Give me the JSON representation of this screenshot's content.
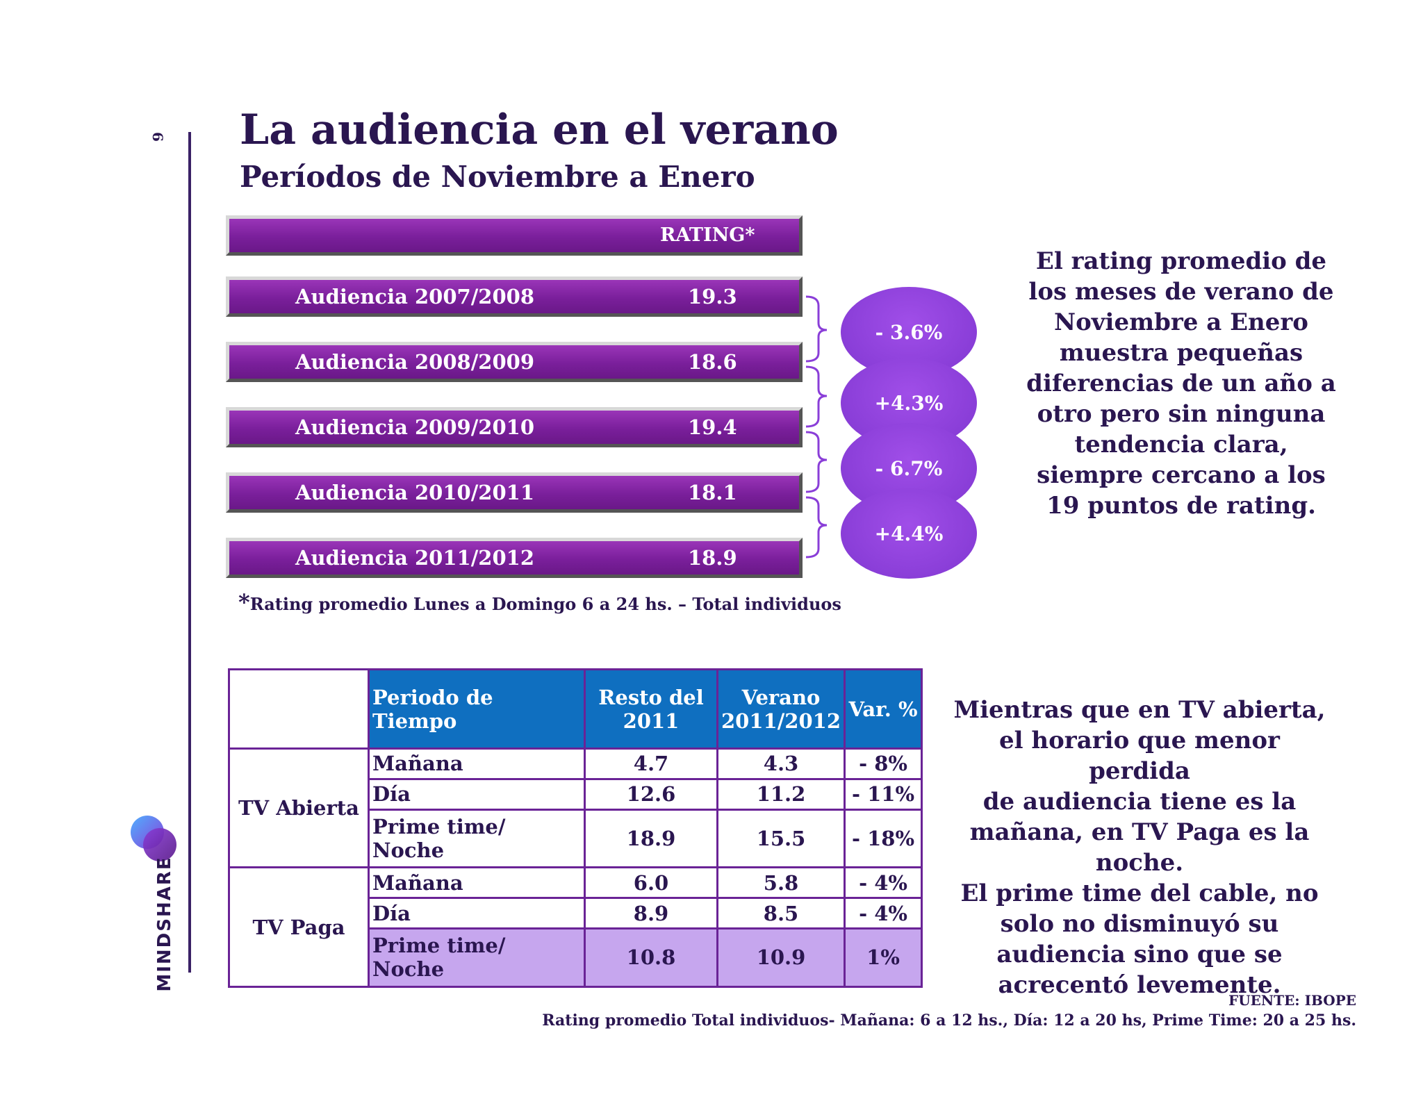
{
  "page_number": "6",
  "logo": {
    "text": "MINDSHARE",
    "icon": "mindshare-logo-icon"
  },
  "title": "La audiencia en el verano",
  "subtitle": "Períodos de Noviembre a Enero",
  "bars": {
    "header": "RATING*",
    "rows": [
      {
        "label": "Audiencia 2007/2008",
        "value": "19.3"
      },
      {
        "label": "Audiencia 2008/2009",
        "value": "18.6"
      },
      {
        "label": "Audiencia 2009/2010",
        "value": "19.4"
      },
      {
        "label": "Audiencia 2010/2011",
        "value": "18.1"
      },
      {
        "label": "Audiencia 2011/2012",
        "value": "18.9"
      }
    ],
    "changes": [
      "- 3.6%",
      "+4.3%",
      "- 6.7%",
      "+4.4%"
    ]
  },
  "footnote": {
    "star": "*",
    "text": "Rating promedio Lunes a Domingo 6 a 24 hs. – Total individuos"
  },
  "side_text_top": [
    "El rating promedio de",
    "los meses de verano de",
    "Noviembre a Enero",
    "muestra pequeñas",
    "diferencias de un año a",
    "otro pero sin ninguna",
    "tendencia clara,",
    "siempre cercano a los",
    "19 puntos de rating."
  ],
  "table": {
    "headers": [
      "Periodo de Tiempo",
      "Resto del 2011",
      "Verano 2011/2012",
      "Var. %"
    ],
    "groups": [
      {
        "name": "TV Abierta",
        "rows": [
          {
            "period": "Mañana",
            "resto": "4.7",
            "verano": "4.3",
            "var": "- 8%"
          },
          {
            "period": "Día",
            "resto": "12.6",
            "verano": "11.2",
            "var": "- 11%"
          },
          {
            "period": "Prime time/ Noche",
            "resto": "18.9",
            "verano": "15.5",
            "var": "- 18%"
          }
        ]
      },
      {
        "name": "TV Paga",
        "rows": [
          {
            "period": "Mañana",
            "resto": "6.0",
            "verano": "5.8",
            "var": "- 4%"
          },
          {
            "period": "Día",
            "resto": "8.9",
            "verano": "8.5",
            "var": "- 4%"
          },
          {
            "period": "Prime time/ Noche",
            "resto": "10.8",
            "verano": "10.9",
            "var": "1%"
          }
        ]
      }
    ]
  },
  "side_text_bottom": [
    "Mientras que en TV abierta,",
    "el horario que menor perdida",
    "de audiencia tiene es la",
    "mañana, en TV Paga es la",
    "noche.",
    "El prime time del cable, no",
    "solo no disminuyó su",
    "audiencia sino que se",
    "acrecentó levemente."
  ],
  "source": "FUENTE: IBOPE",
  "rating_note": "Rating promedio Total individuos- Mañana: 6 a 12 hs., Día: 12 a 20 hs, Prime Time: 20 a 25 hs.",
  "colors": {
    "bar": "#7a1f9b",
    "bubble": "#8a3ed8",
    "table_header": "#0f6fc0",
    "highlight": "#c6a6ee",
    "text": "#2a1650"
  }
}
